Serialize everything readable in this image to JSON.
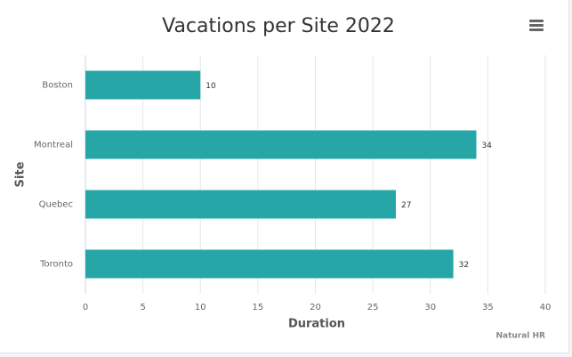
{
  "chart_data": {
    "type": "bar",
    "orientation": "horizontal",
    "title": "Vacations per Site 2022",
    "categories": [
      "Boston",
      "Montreal",
      "Quebec",
      "Toronto"
    ],
    "values": [
      10,
      34,
      27,
      32
    ],
    "color": "#26a6a6",
    "xlabel": "Duration",
    "ylabel": "Site",
    "xlim": [
      0,
      40
    ],
    "xticks": [
      0,
      5,
      10,
      15,
      20,
      25,
      30,
      35,
      40
    ],
    "grid": true,
    "credits": "Natural HR"
  }
}
